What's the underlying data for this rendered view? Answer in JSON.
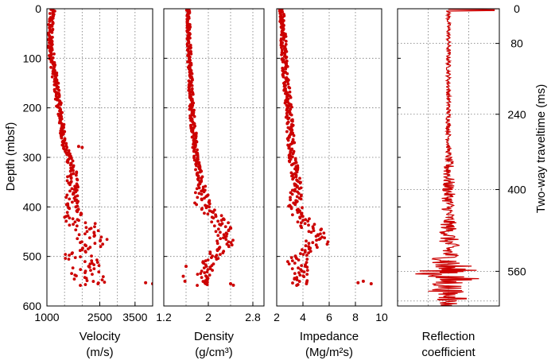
{
  "chart_data": {
    "type": "scatter",
    "marker_color": "#cc0000",
    "y_axis": {
      "label": "Depth (mbsf)",
      "lim": [
        600,
        0
      ],
      "ticks": [
        "0",
        "100",
        "200",
        "300",
        "400",
        "500",
        "600"
      ],
      "grid": true
    },
    "y2_axis": {
      "label": "Two-way traveltime (ms)",
      "ticks": [
        "0",
        "80",
        "240",
        "400",
        "560"
      ],
      "depth_at_tick": [
        0,
        70,
        213,
        365,
        530
      ]
    },
    "panels": [
      {
        "id": "velocity",
        "xlabel_line1": "Velocity",
        "xlabel_line2": "(m/s)",
        "xlim": [
          1000,
          4000
        ],
        "xticks": [
          {
            "v": 1000,
            "label": "1000"
          },
          {
            "v": 2500,
            "label": "2500"
          },
          {
            "v": 3500,
            "label": "3500"
          }
        ],
        "xgrid": [
          1500,
          2000,
          2500,
          3000,
          3500
        ],
        "series": [
          {
            "name": "",
            "mode": "markers",
            "profile": [
              [
                0,
                1150
              ],
              [
                60,
                1080
              ],
              [
                100,
                1150
              ],
              [
                150,
                1250
              ],
              [
                200,
                1350
              ],
              [
                250,
                1450
              ],
              [
                280,
                1500
              ],
              [
                300,
                1650
              ],
              [
                320,
                1720
              ],
              [
                350,
                1720
              ],
              [
                380,
                1720
              ],
              [
                400,
                1700
              ],
              [
                420,
                1800
              ],
              [
                440,
                2100
              ],
              [
                460,
                2300
              ],
              [
                475,
                2200
              ],
              [
                490,
                1900
              ],
              [
                510,
                2000
              ],
              [
                530,
                2100
              ],
              [
                550,
                2200
              ],
              [
                555,
                2200
              ]
            ],
            "jitter": [
              [
                0,
                80
              ],
              [
                280,
                70
              ],
              [
                320,
                130
              ],
              [
                400,
                200
              ],
              [
                430,
                450
              ],
              [
                500,
                450
              ],
              [
                560,
                450
              ]
            ],
            "outliers": [
              [
                553,
                3800
              ],
              [
                555,
                4000
              ],
              [
                278,
                1900
              ],
              [
                280,
                2000
              ]
            ]
          }
        ]
      },
      {
        "id": "density",
        "xlabel_line1": "Density",
        "xlabel_line2": "(g/cm³)",
        "xlim": [
          1.2,
          3.0
        ],
        "xticks": [
          {
            "v": 1.2,
            "label": "1.2"
          },
          {
            "v": 2,
            "label": "2"
          },
          {
            "v": 2.8,
            "label": "2.8"
          }
        ],
        "xgrid": [
          1.6,
          2.0,
          2.4,
          2.8
        ],
        "series": [
          {
            "name": "",
            "mode": "markers",
            "profile": [
              [
                0,
                1.64
              ],
              [
                100,
                1.66
              ],
              [
                200,
                1.7
              ],
              [
                300,
                1.78
              ],
              [
                350,
                1.86
              ],
              [
                400,
                1.9
              ],
              [
                420,
                2.1
              ],
              [
                440,
                2.25
              ],
              [
                460,
                2.32
              ],
              [
                480,
                2.28
              ],
              [
                500,
                2.05
              ],
              [
                520,
                2.0
              ],
              [
                540,
                1.9
              ],
              [
                560,
                1.9
              ]
            ],
            "jitter": [
              [
                0,
                0.03
              ],
              [
                330,
                0.05
              ],
              [
                420,
                0.18
              ],
              [
                500,
                0.15
              ],
              [
                560,
                0.1
              ]
            ],
            "outliers": [
              [
                555,
                2.4
              ],
              [
                558,
                2.45
              ],
              [
                520,
                1.6
              ],
              [
                540,
                1.55
              ],
              [
                550,
                1.58
              ]
            ]
          }
        ]
      },
      {
        "id": "impedance",
        "xlabel_line1": "Impedance",
        "xlabel_line2": "(Mg/m²s)",
        "xlim": [
          2,
          10
        ],
        "xticks": [
          {
            "v": 2,
            "label": "2"
          },
          {
            "v": 4,
            "label": "4"
          },
          {
            "v": 6,
            "label": "6"
          },
          {
            "v": 8,
            "label": "8"
          },
          {
            "v": 10,
            "label": "10"
          }
        ],
        "xgrid": [
          4,
          6,
          8
        ],
        "series": [
          {
            "name": "",
            "mode": "markers",
            "profile": [
              [
                0,
                2.4
              ],
              [
                100,
                2.6
              ],
              [
                200,
                2.9
              ],
              [
                300,
                3.2
              ],
              [
                350,
                3.5
              ],
              [
                400,
                3.4
              ],
              [
                420,
                3.8
              ],
              [
                440,
                4.6
              ],
              [
                460,
                5.2
              ],
              [
                475,
                5.0
              ],
              [
                490,
                4.0
              ],
              [
                510,
                3.6
              ],
              [
                530,
                3.8
              ],
              [
                550,
                3.9
              ],
              [
                560,
                3.6
              ]
            ],
            "jitter": [
              [
                0,
                0.2
              ],
              [
                330,
                0.3
              ],
              [
                420,
                0.6
              ],
              [
                470,
                1.0
              ],
              [
                500,
                0.8
              ],
              [
                560,
                0.6
              ]
            ],
            "outliers": [
              [
                553,
                8.2
              ],
              [
                555,
                9.2
              ],
              [
                550,
                8.6
              ]
            ]
          }
        ]
      },
      {
        "id": "reflection",
        "xlabel_line1": "Reflection",
        "xlabel_line2": "coefficient",
        "xlim": [
          -1,
          1
        ],
        "xticks": [],
        "xgrid": [
          -0.4,
          0,
          0.4
        ],
        "series": [
          {
            "name": "",
            "mode": "trace",
            "envelope": [
              [
                0,
                0.04
              ],
              [
                290,
                0.05
              ],
              [
                320,
                0.12
              ],
              [
                420,
                0.14
              ],
              [
                500,
                0.25
              ],
              [
                520,
                0.55
              ],
              [
                540,
                0.6
              ],
              [
                560,
                0.35
              ],
              [
                600,
                0.2
              ]
            ],
            "spikes": [
              [
                0,
                1.0
              ],
              [
                3,
                0.9
              ],
              [
                535,
                -0.65
              ],
              [
                545,
                0.6
              ],
              [
                570,
                -0.4
              ],
              [
                585,
                0.35
              ]
            ]
          }
        ]
      }
    ]
  }
}
